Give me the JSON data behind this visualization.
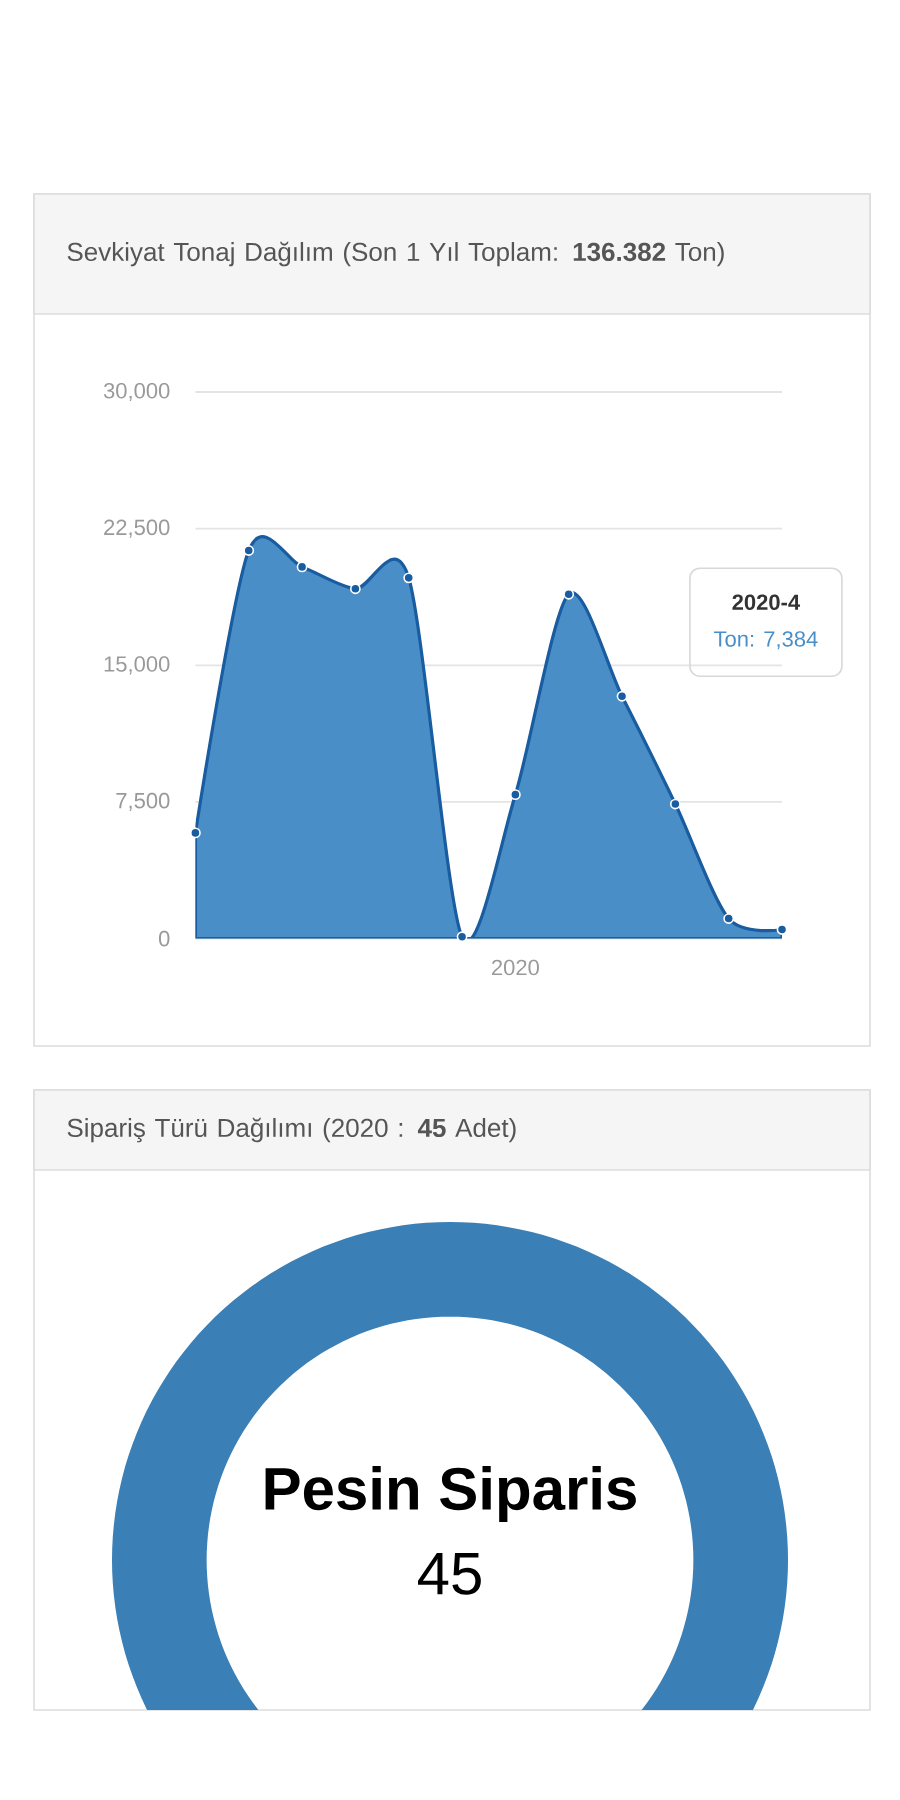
{
  "chart_data": [
    {
      "type": "area",
      "title": "Sevkiyat Tonaj Dağılım (Son 1 Yıl Toplam: **136.382** Ton)",
      "categories": [
        null,
        null,
        null,
        null,
        null,
        null,
        "2020",
        null,
        null,
        null,
        null,
        null
      ],
      "values": [
        5800,
        21300,
        20400,
        19200,
        19800,
        100,
        7900,
        18900,
        13300,
        7384,
        1100,
        500
      ],
      "color": "#4a8ec8",
      "ylim": [
        0,
        30000
      ],
      "yticks": [
        0,
        {
          "value": 7500,
          "label": "7,500"
        },
        {
          "value": 15000,
          "label": "15,000"
        },
        {
          "value": 22500,
          "label": "22,500"
        },
        {
          "value": 30000,
          "label": "30,000"
        }
      ],
      "grid": "y",
      "marker": "circle",
      "annotations": [
        "2020-4",
        "Ton: 7,384"
      ]
    },
    {
      "type": "donut",
      "title": "Sipariş Türü Dağılımı (2020 : **45** Adet)",
      "categories": [
        "Pesin Siparis"
      ],
      "values": [
        45
      ],
      "colors": [
        "#3a7fb6"
      ],
      "data_labels": true
    }
  ]
}
